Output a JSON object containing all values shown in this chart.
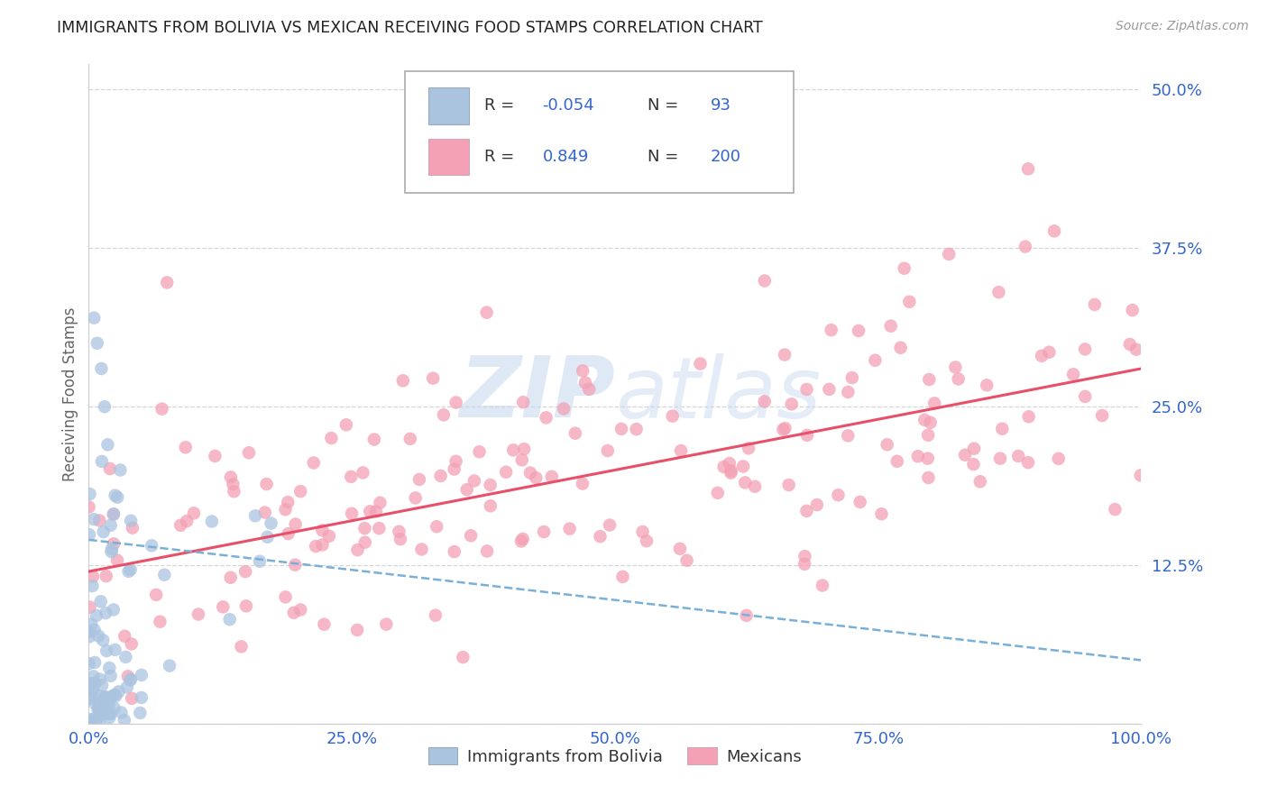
{
  "title": "IMMIGRANTS FROM BOLIVIA VS MEXICAN RECEIVING FOOD STAMPS CORRELATION CHART",
  "source": "Source: ZipAtlas.com",
  "ylabel": "Receiving Food Stamps",
  "watermark_zip": "ZIP",
  "watermark_atlas": "atlas",
  "bolivia_color": "#aac4e0",
  "mexico_color": "#f4a0b5",
  "bolivia_edge": "#88aacc",
  "mexico_edge": "#e8809a",
  "bolivia_line_color": "#7ab0d8",
  "mexico_line_color": "#e8506a",
  "title_color": "#222222",
  "source_color": "#999999",
  "axis_label_color": "#666666",
  "tick_color": "#3366cc",
  "grid_color": "#cccccc",
  "legend_r_color": "#3366cc",
  "background_color": "#ffffff",
  "xlim": [
    0,
    100
  ],
  "ylim": [
    0,
    52
  ],
  "yticks": [
    0,
    12.5,
    25.0,
    37.5,
    50.0
  ],
  "xticks": [
    0,
    25,
    50,
    75,
    100
  ],
  "xtick_labels": [
    "0.0%",
    "25.0%",
    "50.0%",
    "75.0%",
    "100.0%"
  ],
  "ytick_labels": [
    "",
    "12.5%",
    "25.0%",
    "37.5%",
    "50.0%"
  ],
  "bolivia_R": -0.054,
  "bolivia_N": 93,
  "mexico_R": 0.849,
  "mexico_N": 200,
  "mexico_trend_y0": 12.0,
  "mexico_trend_y1": 28.0,
  "bolivia_trend_y0": 14.5,
  "bolivia_trend_y1": 5.0
}
